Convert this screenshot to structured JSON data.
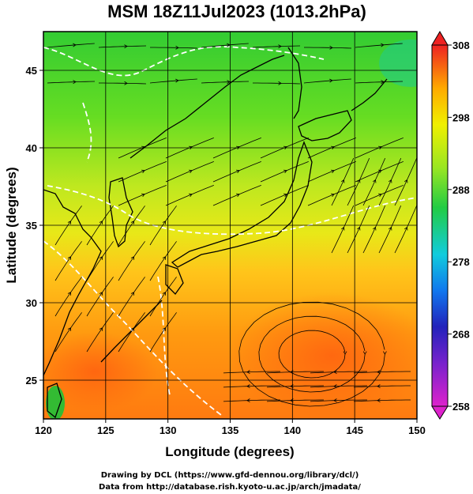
{
  "title": "MSM 18Z11Jul2023 (1013.2hPa)",
  "map": {
    "xlabel": "Longitude (degrees)",
    "ylabel": "Latitude  (degrees)",
    "xlim": [
      120,
      150
    ],
    "ylim": [
      22.5,
      47.5
    ],
    "x_ticks": [
      "120",
      "125",
      "130",
      "135",
      "140",
      "145",
      "150"
    ],
    "y_ticks": [
      "25",
      "30",
      "35",
      "40",
      "45"
    ],
    "grid": true,
    "field": "temperature (K) with wind streamlines",
    "colors": {
      "cool": "#22cc22",
      "mid": "#cfee22",
      "warm": "#ffa500",
      "hot": "#ff6a10",
      "coast": "#000000",
      "contour": "#ffffff"
    }
  },
  "colorbar": {
    "min": 258,
    "max": 308,
    "tick_labels": [
      "308",
      "298",
      "288",
      "278",
      "268",
      "258"
    ],
    "colors": [
      "#dd22cc",
      "#2222bb",
      "#1188ee",
      "#11ccdd",
      "#22cc44",
      "#aaee22",
      "#f0f000",
      "#ffaa00",
      "#ff6622",
      "#ee2222"
    ]
  },
  "footer": {
    "line1": "Drawing by DCL (https://www.gfd-dennou.org/library/dcl/)",
    "line2": "Data from http://database.rish.kyoto-u.ac.jp/arch/jmadata/"
  }
}
